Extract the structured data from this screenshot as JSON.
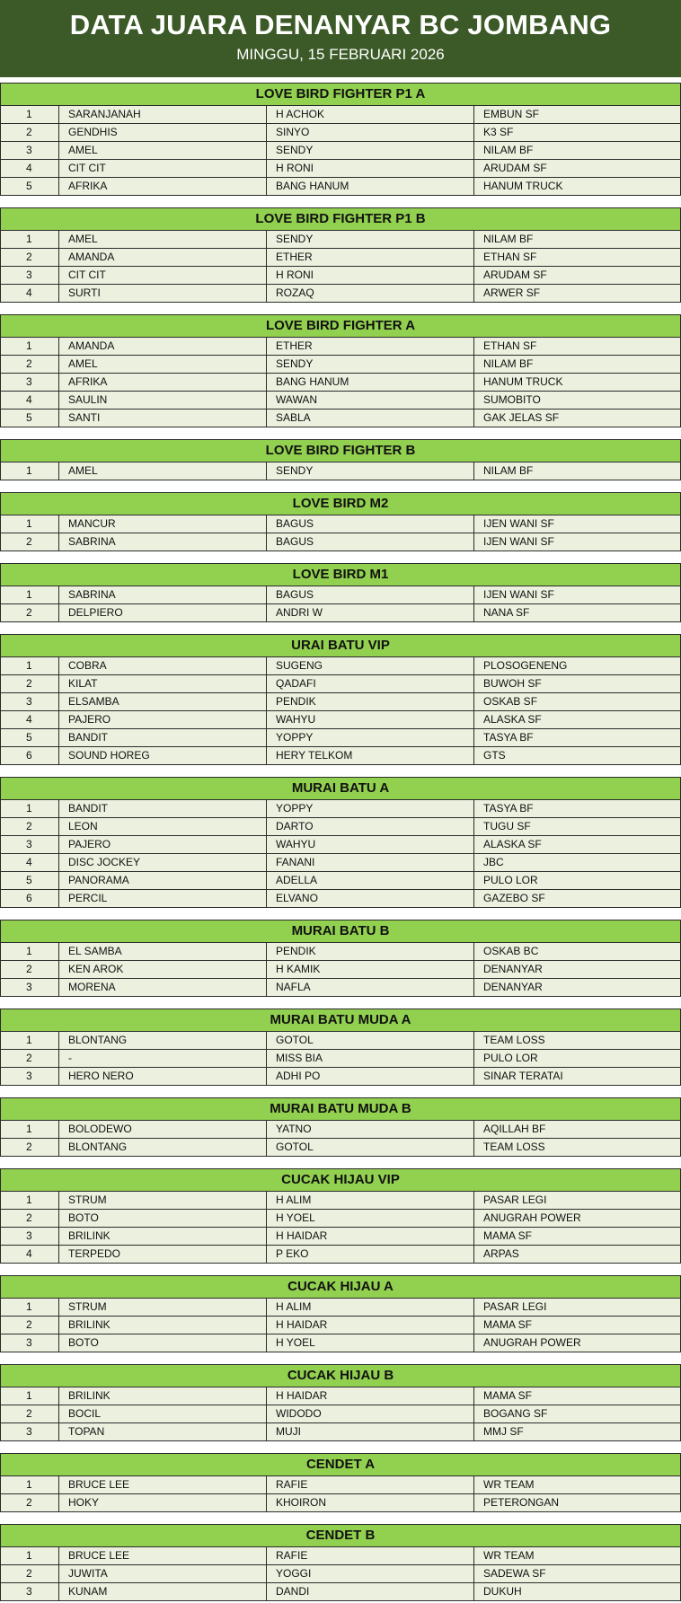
{
  "header": {
    "title": "DATA JUARA DENANYAR BC JOMBANG",
    "subtitle": "MINGGU, 15 FEBRUARI 2026"
  },
  "sections": [
    {
      "title": "LOVE BIRD FIGHTER P1 A",
      "rows": [
        [
          "1",
          "SARANJANAH",
          "H ACHOK",
          "EMBUN SF"
        ],
        [
          "2",
          "GENDHIS",
          "SINYO",
          "K3 SF"
        ],
        [
          "3",
          "AMEL",
          "SENDY",
          "NILAM BF"
        ],
        [
          "4",
          "CIT CIT",
          "H RONI",
          "ARUDAM SF"
        ],
        [
          "5",
          "AFRIKA",
          "BANG HANUM",
          "HANUM TRUCK"
        ]
      ]
    },
    {
      "title": "LOVE BIRD FIGHTER P1 B",
      "rows": [
        [
          "1",
          "AMEL",
          "SENDY",
          "NILAM BF"
        ],
        [
          "2",
          "AMANDA",
          "ETHER",
          "ETHAN SF"
        ],
        [
          "3",
          "CIT CIT",
          "H RONI",
          "ARUDAM SF"
        ],
        [
          "4",
          "SURTI",
          "ROZAQ",
          "ARWER SF"
        ]
      ]
    },
    {
      "title": "LOVE BIRD FIGHTER A",
      "rows": [
        [
          "1",
          "AMANDA",
          "ETHER",
          "ETHAN SF"
        ],
        [
          "2",
          "AMEL",
          "SENDY",
          "NILAM BF"
        ],
        [
          "3",
          "AFRIKA",
          "BANG HANUM",
          "HANUM TRUCK"
        ],
        [
          "4",
          "SAULIN",
          "WAWAN",
          "SUMOBITO"
        ],
        [
          "5",
          "SANTI",
          "SABLA",
          "GAK JELAS SF"
        ]
      ]
    },
    {
      "title": "LOVE BIRD FIGHTER B",
      "rows": [
        [
          "1",
          "AMEL",
          "SENDY",
          "NILAM BF"
        ]
      ]
    },
    {
      "title": "LOVE BIRD M2",
      "rows": [
        [
          "1",
          "MANCUR",
          "BAGUS",
          "IJEN WANI SF"
        ],
        [
          "2",
          "SABRINA",
          "BAGUS",
          "IJEN WANI SF"
        ]
      ]
    },
    {
      "title": "LOVE BIRD M1",
      "rows": [
        [
          "1",
          "SABRINA",
          "BAGUS",
          "IJEN WANI SF"
        ],
        [
          "2",
          "DELPIERO",
          "ANDRI W",
          "NANA SF"
        ]
      ]
    },
    {
      "title": "URAI BATU VIP",
      "rows": [
        [
          "1",
          "COBRA",
          "SUGENG",
          "PLOSOGENENG"
        ],
        [
          "2",
          "KILAT",
          "QADAFI",
          "BUWOH SF"
        ],
        [
          "3",
          "ELSAMBA",
          "PENDIK",
          "OSKAB SF"
        ],
        [
          "4",
          "PAJERO",
          "WAHYU",
          "ALASKA SF"
        ],
        [
          "5",
          "BANDIT",
          "YOPPY",
          "TASYA BF"
        ],
        [
          "6",
          "SOUND HOREG",
          "HERY TELKOM",
          "GTS"
        ]
      ]
    },
    {
      "title": "MURAI BATU A",
      "rows": [
        [
          "1",
          "BANDIT",
          "YOPPY",
          "TASYA BF"
        ],
        [
          "2",
          "LEON",
          "DARTO",
          "TUGU SF"
        ],
        [
          "3",
          "PAJERO",
          "WAHYU",
          "ALASKA SF"
        ],
        [
          "4",
          "DISC JOCKEY",
          "FANANI",
          "JBC"
        ],
        [
          "5",
          "PANORAMA",
          "ADELLA",
          "PULO LOR"
        ],
        [
          "6",
          "PERCIL",
          "ELVANO",
          "GAZEBO SF"
        ]
      ]
    },
    {
      "title": "MURAI BATU B",
      "rows": [
        [
          "1",
          "EL SAMBA",
          "PENDIK",
          "OSKAB BC"
        ],
        [
          "2",
          "KEN AROK",
          "H KAMIK",
          "DENANYAR"
        ],
        [
          "3",
          "MORENA",
          "NAFLA",
          "DENANYAR"
        ]
      ]
    },
    {
      "title": "MURAI BATU MUDA A",
      "rows": [
        [
          "1",
          "BLONTANG",
          "GOTOL",
          "TEAM LOSS"
        ],
        [
          "2",
          "-",
          "MISS BIA",
          "PULO LOR"
        ],
        [
          "3",
          "HERO NERO",
          "ADHI PO",
          "SINAR TERATAI"
        ]
      ]
    },
    {
      "title": "MURAI BATU MUDA B",
      "rows": [
        [
          "1",
          "BOLODEWO",
          "YATNO",
          "AQILLAH BF"
        ],
        [
          "2",
          "BLONTANG",
          "GOTOL",
          "TEAM LOSS"
        ]
      ]
    },
    {
      "title": "CUCAK HIJAU VIP",
      "rows": [
        [
          "1",
          "STRUM",
          "H ALIM",
          "PASAR LEGI"
        ],
        [
          "2",
          "BOTO",
          "H YOEL",
          "ANUGRAH POWER"
        ],
        [
          "3",
          "BRILINK",
          "H HAIDAR",
          "MAMA SF"
        ],
        [
          "4",
          "TERPEDO",
          "P EKO",
          "ARPAS"
        ]
      ]
    },
    {
      "title": "CUCAK HIJAU A",
      "rows": [
        [
          "1",
          "STRUM",
          "H ALIM",
          "PASAR LEGI"
        ],
        [
          "2",
          "BRILINK",
          "H HAIDAR",
          "MAMA SF"
        ],
        [
          "3",
          "BOTO",
          "H YOEL",
          "ANUGRAH POWER"
        ]
      ]
    },
    {
      "title": "CUCAK HIJAU B",
      "rows": [
        [
          "1",
          "BRILINK",
          "H HAIDAR",
          "MAMA SF"
        ],
        [
          "2",
          "BOCIL",
          "WIDODO",
          "BOGANG SF"
        ],
        [
          "3",
          "TOPAN",
          "MUJI",
          "MMJ SF"
        ]
      ]
    },
    {
      "title": "CENDET A",
      "rows": [
        [
          "1",
          "BRUCE LEE",
          "RAFIE",
          "WR TEAM"
        ],
        [
          "2",
          "HOKY",
          "KHOIRON",
          "PETERONGAN"
        ]
      ]
    },
    {
      "title": "CENDET B",
      "rows": [
        [
          "1",
          "BRUCE LEE",
          "RAFIE",
          "WR TEAM"
        ],
        [
          "2",
          "JUWITA",
          "YOGGI",
          "SADEWA SF"
        ],
        [
          "3",
          "KUNAM",
          "DANDI",
          "DUKUH"
        ]
      ]
    }
  ]
}
